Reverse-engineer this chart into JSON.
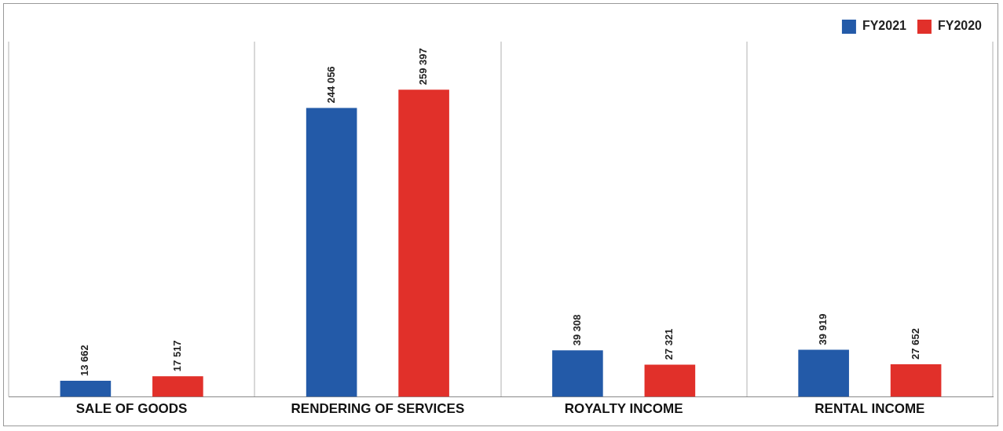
{
  "chart_data": {
    "type": "bar",
    "categories": [
      "SALE OF GOODS",
      "RENDERING OF SERVICES",
      "ROYALTY INCOME",
      "RENTAL INCOME"
    ],
    "series": [
      {
        "name": "FY2021",
        "color": "#235aa8",
        "values": [
          13662,
          244056,
          39308,
          39919
        ]
      },
      {
        "name": "FY2020",
        "color": "#e1302a",
        "values": [
          17517,
          259397,
          27321,
          27652
        ]
      }
    ],
    "data_labels": true,
    "grid": "x",
    "legend": "top right",
    "tick_labels": "x"
  }
}
